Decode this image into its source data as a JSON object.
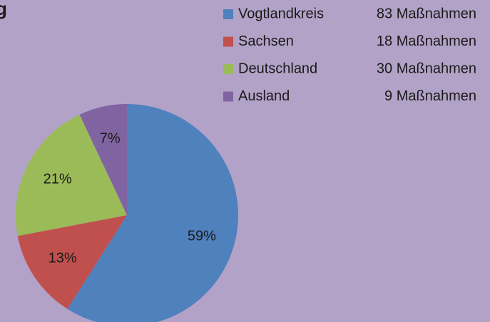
{
  "chart_data": {
    "type": "pie",
    "title": "g",
    "categories": [
      "Vogtlandkreis",
      "Sachsen",
      "Deutschland",
      "Ausland"
    ],
    "legend_counts": [
      "83 Maßnahmen",
      "18 Maßnahmen",
      "30 Maßnahmen",
      "9 Maßnahmen"
    ],
    "values": [
      59,
      13,
      21,
      7
    ],
    "value_labels": [
      "59%",
      "13%",
      "21%",
      "7%"
    ],
    "colors": [
      "#4f81bd",
      "#c0504d",
      "#9bbb59",
      "#8064a2"
    ],
    "legend": "upper right"
  }
}
